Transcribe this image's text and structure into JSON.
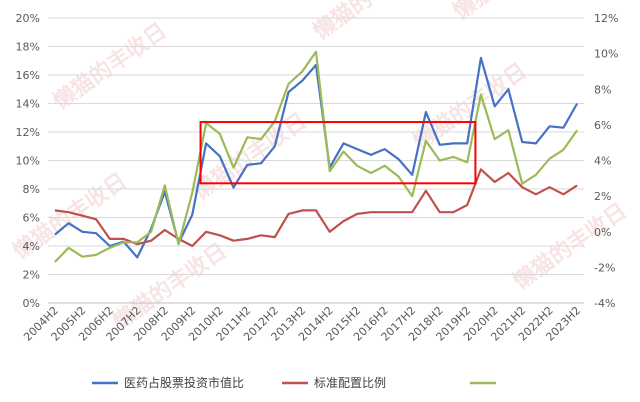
{
  "chart_data": {
    "type": "line",
    "title": "",
    "categories": [
      "2004H2",
      "2005H1",
      "2005H2",
      "2006H1",
      "2006H2",
      "2007H1",
      "2007H2",
      "2008H1",
      "2008H2",
      "2009H1",
      "2009H2",
      "2010H1",
      "2010H2",
      "2011H1",
      "2011H2",
      "2012H1",
      "2012H2",
      "2013H1",
      "2013H2",
      "2014H1",
      "2014H2",
      "2015H1",
      "2015H2",
      "2016H1",
      "2016H2",
      "2017H1",
      "2017H2",
      "2018H1",
      "2018H2",
      "2019H1",
      "2019H2",
      "2020H1",
      "2020H2",
      "2021H1",
      "2021H2",
      "2022H1",
      "2022H2",
      "2023H1",
      "2023H2"
    ],
    "x_tick_labels": [
      "2004H2",
      "2005H2",
      "2006H2",
      "2007H2",
      "2008H2",
      "2009H2",
      "2010H2",
      "2011H2",
      "2012H2",
      "2013H2",
      "2014H2",
      "2015H2",
      "2016H2",
      "2017H2",
      "2018H2",
      "2019H2",
      "2020H2",
      "2021H2",
      "2022H2",
      "2023H2"
    ],
    "y_left": {
      "ticks": [
        "0%",
        "2%",
        "4%",
        "6%",
        "8%",
        "10%",
        "12%",
        "14%",
        "16%",
        "18%",
        "20%"
      ],
      "range": [
        0,
        20
      ]
    },
    "y_right": {
      "ticks": [
        "-4%",
        "-2%",
        "0%",
        "2%",
        "4%",
        "6%",
        "8%",
        "10%",
        "12%"
      ],
      "range": [
        -4,
        12
      ]
    },
    "series": [
      {
        "name": "医药占股票投资市值比",
        "axis": "left",
        "color": "#4472c4",
        "values": [
          4.8,
          5.6,
          5.0,
          4.9,
          4.0,
          4.3,
          3.2,
          5.2,
          7.8,
          4.2,
          6.2,
          11.2,
          10.3,
          8.1,
          9.7,
          9.8,
          11.0,
          14.8,
          15.6,
          16.7,
          9.5,
          11.2,
          10.8,
          10.4,
          10.8,
          10.1,
          9.0,
          13.4,
          11.1,
          11.2,
          11.2,
          17.2,
          13.8,
          15.0,
          11.3,
          11.2,
          12.4,
          12.3,
          14.0
        ]
      },
      {
        "name": "标准配置比例",
        "axis": "right",
        "color": "#c0504d",
        "values": [
          1.2,
          1.1,
          0.9,
          0.7,
          -0.4,
          -0.4,
          -0.7,
          -0.5,
          0.1,
          -0.4,
          -0.8,
          0.0,
          -0.2,
          -0.5,
          -0.4,
          -0.2,
          -0.3,
          1.0,
          1.2,
          1.2,
          0.0,
          0.6,
          1.0,
          1.1,
          1.1,
          1.1,
          1.1,
          2.3,
          1.1,
          1.1,
          1.5,
          3.5,
          2.8,
          3.3,
          2.5,
          2.1,
          2.5,
          2.1,
          2.6
        ]
      },
      {
        "name": "",
        "axis": "right",
        "color": "#9bbb59",
        "values": [
          -1.7,
          -0.9,
          -1.4,
          -1.3,
          -0.9,
          -0.6,
          -0.6,
          0.0,
          2.6,
          -0.7,
          2.2,
          6.1,
          5.5,
          3.6,
          5.3,
          5.2,
          6.2,
          8.3,
          9.0,
          10.1,
          3.4,
          4.5,
          3.7,
          3.3,
          3.7,
          3.1,
          2.0,
          5.1,
          4.0,
          4.2,
          3.9,
          7.7,
          5.2,
          5.7,
          2.7,
          3.2,
          4.1,
          4.6,
          5.7
        ]
      }
    ],
    "legend_position": "bottom",
    "grid": true,
    "annotations": [
      {
        "type": "rectangle",
        "color": "#ff0000",
        "x_from": "2010H1",
        "x_to": "2019H2",
        "y_from_left": 8.4,
        "y_to_left": 12.7
      }
    ]
  },
  "watermark": {
    "text": "懒猫的丰收日"
  }
}
